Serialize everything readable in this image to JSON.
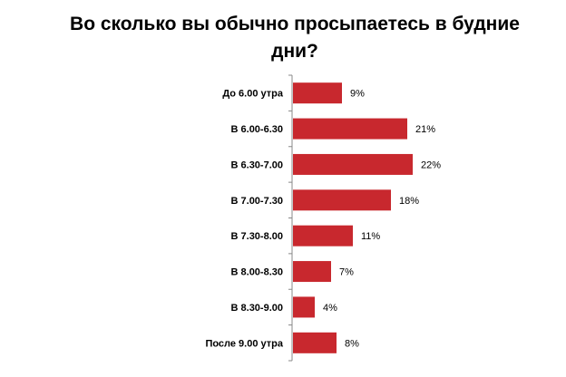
{
  "chart_data": {
    "type": "bar",
    "orientation": "horizontal",
    "title": "Во сколько вы обычно просыпаетесь в будние дни?",
    "categories": [
      "До 6.00 утра",
      "В 6.00-6.30",
      "В 6.30-7.00",
      "В 7.00-7.30",
      "В 7.30-8.00",
      "В 8.00-8.30",
      "В 8.30-9.00",
      "После 9.00 утра"
    ],
    "values": [
      9,
      21,
      22,
      18,
      11,
      7,
      4,
      8
    ],
    "value_labels": [
      "9%",
      "21%",
      "22%",
      "18%",
      "11%",
      "7%",
      "4%",
      "8%"
    ],
    "unit": "%",
    "xlim": [
      0,
      25
    ],
    "grid": false,
    "legend": "none",
    "bar_color": "#c8282e"
  }
}
